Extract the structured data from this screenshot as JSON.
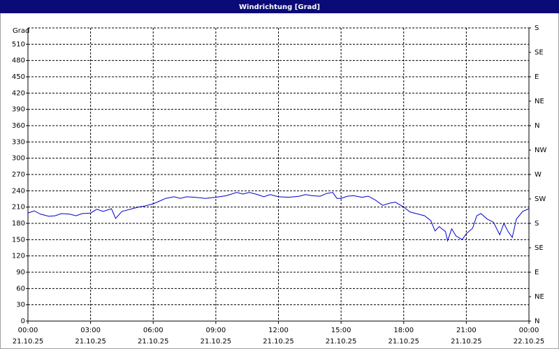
{
  "chart_data": {
    "type": "line",
    "title": "Windrichtung [Grad]",
    "y_label": "Grad",
    "x": [
      0,
      0.3,
      0.6,
      1.0,
      1.3,
      1.6,
      2.0,
      2.3,
      2.6,
      3.0,
      3.3,
      3.6,
      4.0,
      4.2,
      4.5,
      5.0,
      5.3,
      5.6,
      6.0,
      6.3,
      6.6,
      7.0,
      7.3,
      7.6,
      8.0,
      8.5,
      9.0,
      9.5,
      10.0,
      10.3,
      10.6,
      11.0,
      11.3,
      11.6,
      12.0,
      12.5,
      13.0,
      13.3,
      13.6,
      14.0,
      14.3,
      14.6,
      14.8,
      15.0,
      15.3,
      15.6,
      16.0,
      16.3,
      16.6,
      17.0,
      17.3,
      17.6,
      18.0,
      18.3,
      18.6,
      19.0,
      19.3,
      19.5,
      19.7,
      20.0,
      20.1,
      20.3,
      20.5,
      20.8,
      21.0,
      21.3,
      21.5,
      21.7,
      22.0,
      22.3,
      22.6,
      22.8,
      23.0,
      23.2,
      23.4,
      23.7,
      24.0
    ],
    "series": [
      {
        "name": "Windrichtung",
        "color": "#0000cc",
        "values": [
          199,
          203,
          197,
          193,
          194,
          198,
          197,
          194,
          198,
          199,
          206,
          202,
          207,
          189,
          202,
          207,
          210,
          212,
          216,
          221,
          226,
          229,
          226,
          229,
          228,
          226,
          228,
          231,
          237,
          234,
          237,
          233,
          229,
          233,
          229,
          228,
          230,
          233,
          231,
          230,
          235,
          237,
          226,
          226,
          230,
          231,
          228,
          230,
          224,
          213,
          217,
          219,
          210,
          201,
          198,
          194,
          185,
          166,
          174,
          165,
          148,
          170,
          157,
          150,
          161,
          171,
          194,
          198,
          188,
          182,
          159,
          180,
          165,
          154,
          188,
          202,
          207
        ]
      }
    ],
    "xlim": [
      0,
      24
    ],
    "xticks": [
      {
        "value": 0,
        "label": "00:00"
      },
      {
        "value": 3,
        "label": "03:00"
      },
      {
        "value": 6,
        "label": "06:00"
      },
      {
        "value": 9,
        "label": "09:00"
      },
      {
        "value": 12,
        "label": "12:00"
      },
      {
        "value": 15,
        "label": "15:00"
      },
      {
        "value": 18,
        "label": "18:00"
      },
      {
        "value": 21,
        "label": "21:00"
      },
      {
        "value": 24,
        "label": "00:00"
      }
    ],
    "xtick_dates": [
      "21.10.25",
      "21.10.25",
      "21.10.25",
      "21.10.25",
      "21.10.25",
      "21.10.25",
      "21.10.25",
      "21.10.25",
      "22.10.25"
    ],
    "ylim": [
      0,
      540
    ],
    "yticks": [
      0,
      30,
      60,
      90,
      120,
      150,
      180,
      210,
      240,
      270,
      300,
      330,
      360,
      390,
      420,
      450,
      480,
      510
    ],
    "y2lim": [
      0,
      540
    ],
    "y2ticks": [
      {
        "value": 0,
        "label": "N"
      },
      {
        "value": 45,
        "label": "NE"
      },
      {
        "value": 90,
        "label": "E"
      },
      {
        "value": 135,
        "label": "SE"
      },
      {
        "value": 180,
        "label": "S"
      },
      {
        "value": 225,
        "label": "SW"
      },
      {
        "value": 270,
        "label": "W"
      },
      {
        "value": 315,
        "label": "NW"
      },
      {
        "value": 360,
        "label": "N"
      },
      {
        "value": 405,
        "label": "NE"
      },
      {
        "value": 450,
        "label": "E"
      },
      {
        "value": 495,
        "label": "SE"
      },
      {
        "value": 540,
        "label": "S"
      }
    ],
    "grid": true
  }
}
